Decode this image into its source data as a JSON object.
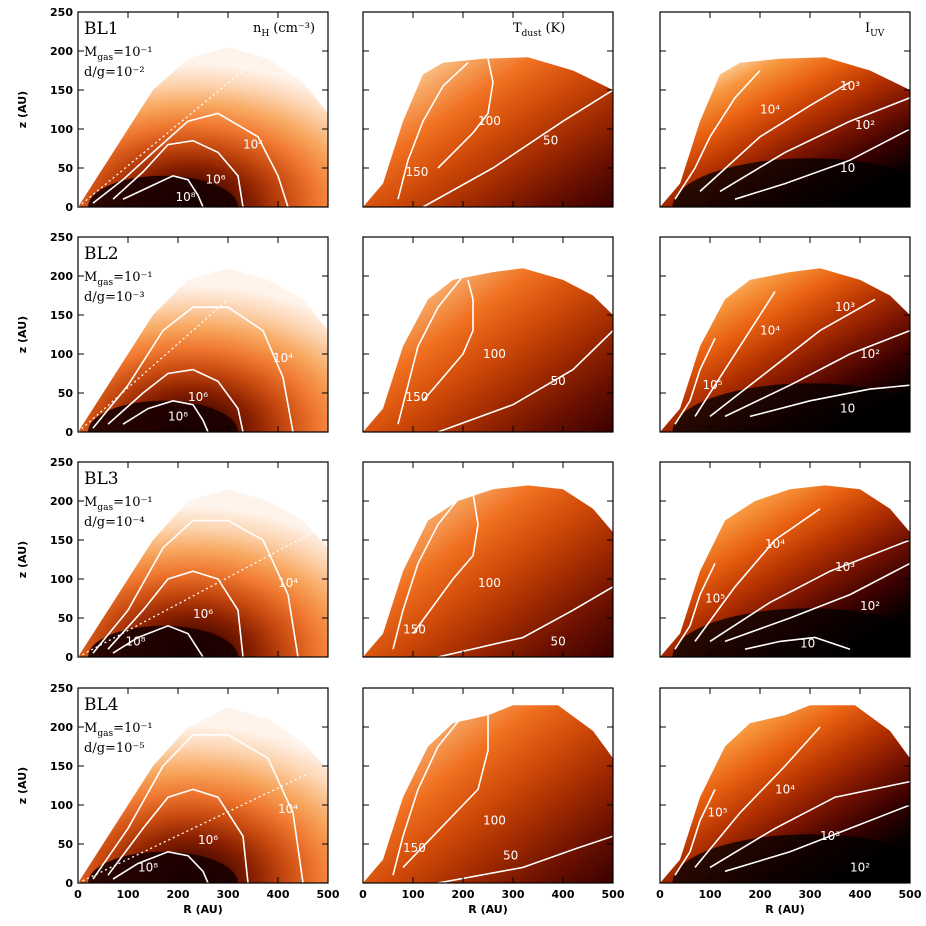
{
  "chart_data": {
    "type": "heatmap",
    "xlabel": "R (AU)",
    "ylabel": "z (AU)",
    "xlim": [
      0,
      500
    ],
    "ylim": [
      0,
      250
    ],
    "xticks": [
      "0",
      "100",
      "200",
      "300",
      "400",
      "500"
    ],
    "yticks": [
      "0",
      "50",
      "100",
      "150",
      "200",
      "250"
    ],
    "columns": [
      {
        "quantity": "density",
        "title_main": "n",
        "title_sub": "H",
        "title_unit": "(cm⁻³)"
      },
      {
        "quantity": "temperature",
        "title_main": "T",
        "title_sub": "dust",
        "title_unit": "(K)"
      },
      {
        "quantity": "uv",
        "title_main": "I",
        "title_sub": "UV",
        "title_unit": ""
      }
    ],
    "rows": [
      {
        "name": "BL1",
        "mgas": "M",
        "mgas_sub": "gas",
        "mgas_val": "=10⁻¹",
        "dg": "d/g=10⁻²",
        "density_contours": [
          "10⁴",
          "10⁶",
          "10⁸"
        ],
        "temperature_contours": [
          "150",
          "100",
          "50"
        ],
        "uv_contours": [
          "10⁴",
          "10³",
          "10²",
          "10"
        ]
      },
      {
        "name": "BL2",
        "mgas": "M",
        "mgas_sub": "gas",
        "mgas_val": "=10⁻¹",
        "dg": "d/g=10⁻³",
        "density_contours": [
          "10⁴",
          "10⁶",
          "10⁸"
        ],
        "temperature_contours": [
          "150",
          "100",
          "50"
        ],
        "uv_contours": [
          "10⁵",
          "10⁴",
          "10³",
          "10²",
          "10"
        ]
      },
      {
        "name": "BL3",
        "mgas": "M",
        "mgas_sub": "gas",
        "mgas_val": "=10⁻¹",
        "dg": "d/g=10⁻⁴",
        "density_contours": [
          "10⁴",
          "10⁶",
          "10⁸"
        ],
        "temperature_contours": [
          "150",
          "100",
          "50"
        ],
        "uv_contours": [
          "10⁵",
          "10⁴",
          "10³",
          "10²",
          "10"
        ]
      },
      {
        "name": "BL4",
        "mgas": "M",
        "mgas_sub": "gas",
        "mgas_val": "=10⁻¹",
        "dg": "d/g=10⁻⁵",
        "density_contours": [
          "10⁴",
          "10⁶",
          "10⁸"
        ],
        "temperature_contours": [
          "150",
          "100",
          "50"
        ],
        "uv_contours": [
          "10⁵",
          "10⁴",
          "10³",
          "10²"
        ]
      }
    ]
  },
  "colors": {
    "density_stops": [
      "#1a0000",
      "#4a0a00",
      "#8a2000",
      "#c84a10",
      "#f07830",
      "#f8a860",
      "#fcd4b0",
      "#fff4ec"
    ],
    "temperature_stops": [
      "#3a0000",
      "#6a1000",
      "#a02a00",
      "#d04a08",
      "#f07020",
      "#f8b070",
      "#fff2e0"
    ],
    "uv_stops": [
      "#050000",
      "#3a0000",
      "#7a1400",
      "#b83400",
      "#e86010",
      "#f89840",
      "#fff0d8"
    ],
    "contour": "#ffffff"
  }
}
